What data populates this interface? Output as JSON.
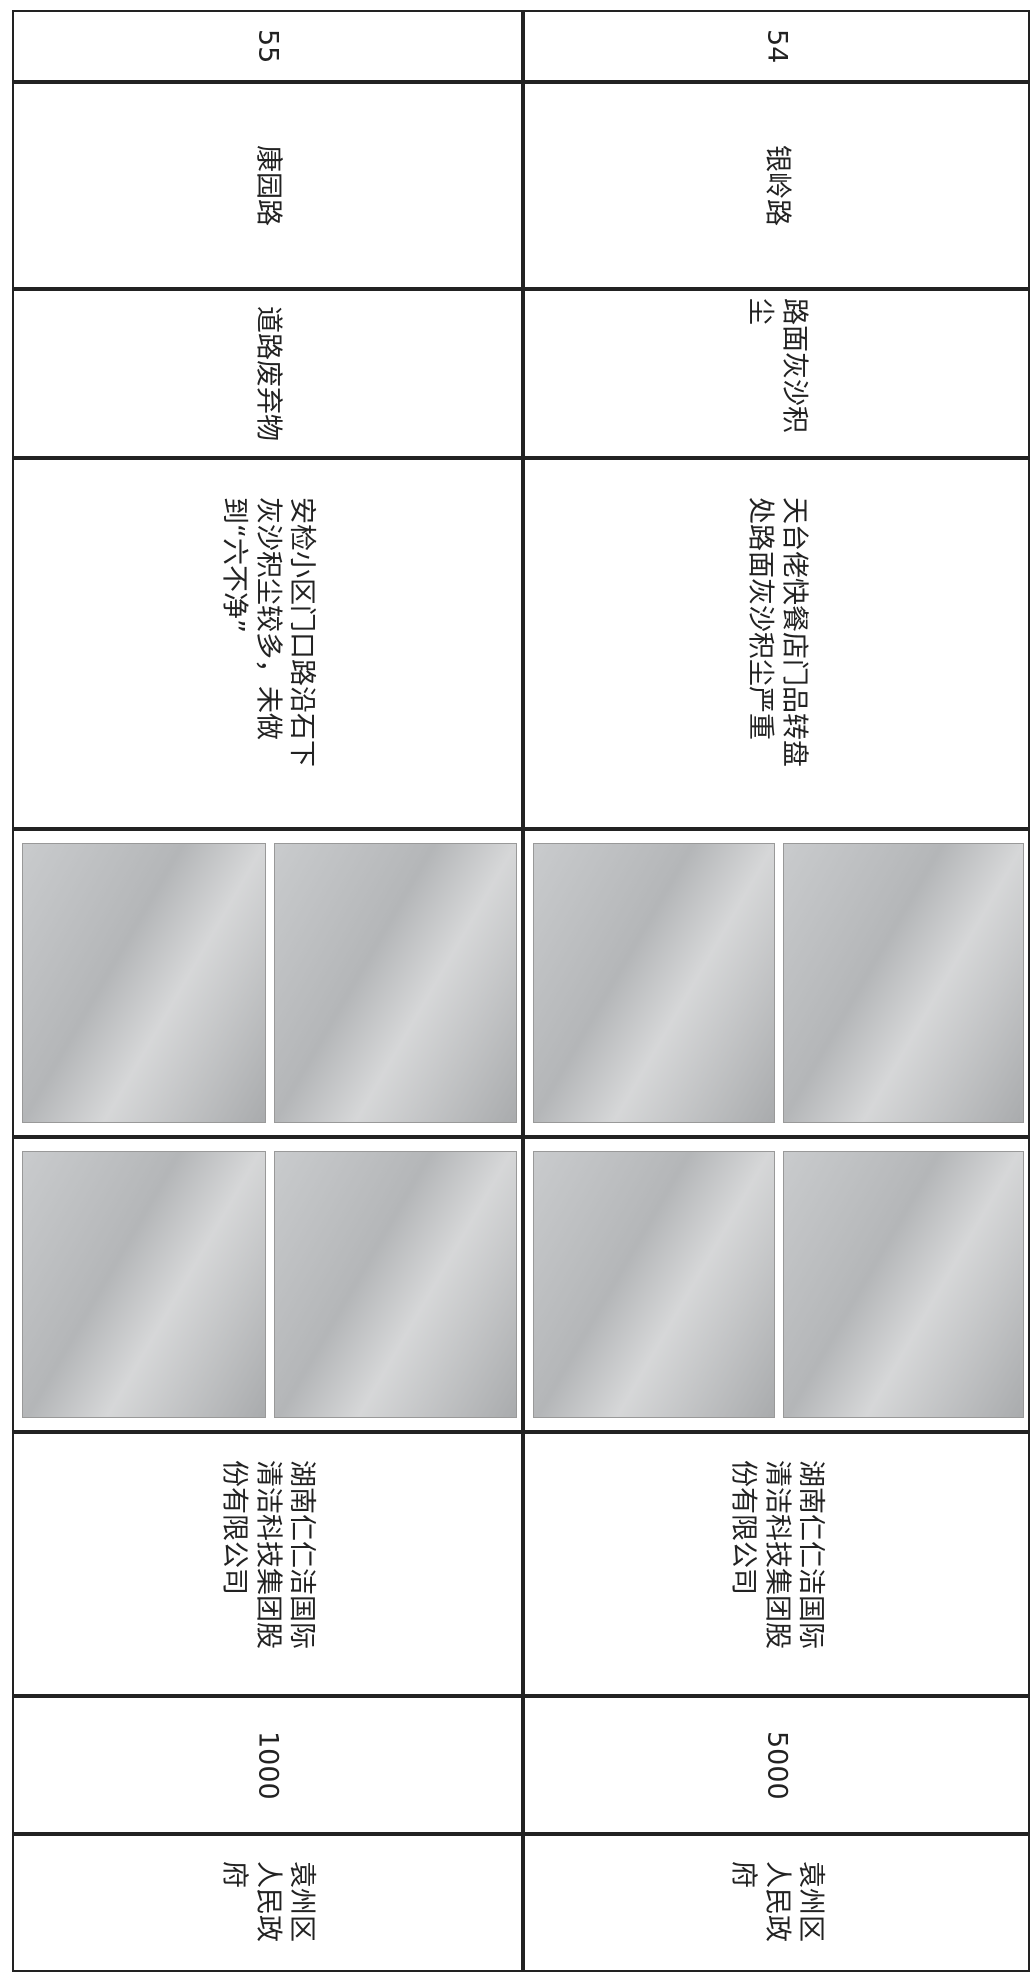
{
  "table": {
    "rows": [
      {
        "no": 54,
        "road": "银岭路",
        "issue": "路面灰沙积尘",
        "description": "天台佬快餐店门品转盘处路面灰沙积尘严重",
        "company": "湖南仁仁洁国际清洁科技集团股份有限公司",
        "amount": 5000,
        "authority": "袁州区人民政府"
      },
      {
        "no": 55,
        "road": "康园路",
        "issue": "道路废弃物",
        "description": "安检小区门口路沿石下灰沙积尘较多，未做到“六不净”",
        "company": "湖南仁仁洁国际清洁科技集团股份有限公司",
        "amount": 1000,
        "authority": "袁州区人民政府"
      }
    ]
  }
}
